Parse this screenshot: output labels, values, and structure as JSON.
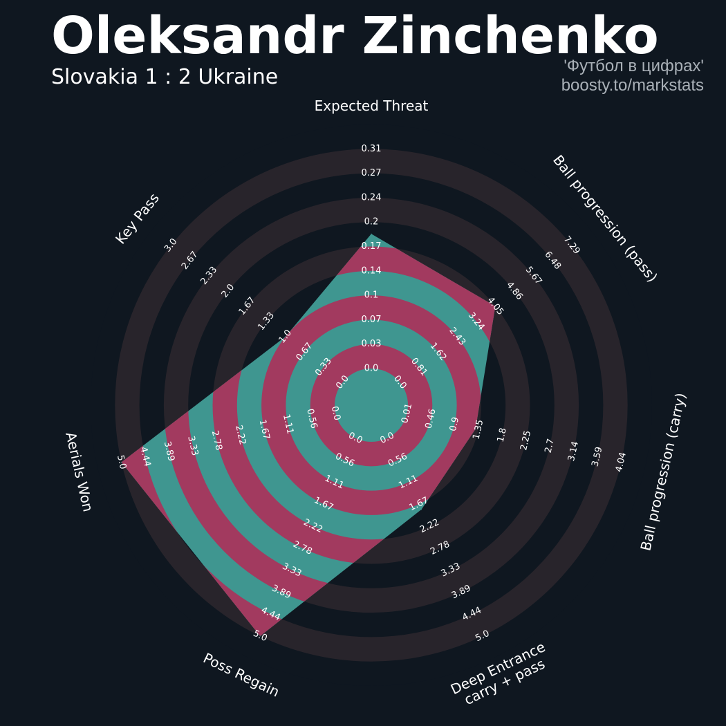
{
  "header": {
    "title": "Oleksandr Zinchenko",
    "subtitle": "Slovakia 1 : 2 Ukraine",
    "credit_line1": "'Футбол в цифрах'",
    "credit_line2": "boosty.to/markstats"
  },
  "colors": {
    "background": "#0f1720",
    "ring_band": "#28242b",
    "player_fill": "#3f9690",
    "player_highlight": "#a23a5f",
    "text": "#ffffff",
    "credit": "#a9b0b7"
  },
  "chart_data": {
    "type": "radar",
    "title": "Oleksandr Zinchenko",
    "subtitle": "Slovakia 1 : 2 Ukraine",
    "grid": true,
    "parameters": [
      {
        "label": "Expected Threat",
        "min": 0.0,
        "max": 0.31,
        "value": 0.19,
        "ticks": [
          "0.0",
          "0.03",
          "0.07",
          "0.1",
          "0.14",
          "0.17",
          "0.2",
          "0.24",
          "0.27",
          "0.31"
        ]
      },
      {
        "label": "Ball progression (pass)",
        "min": 0.0,
        "max": 7.29,
        "value": 4.05,
        "ticks": [
          "0.0",
          "0.81",
          "1.62",
          "2.43",
          "3.24",
          "4.05",
          "4.86",
          "5.67",
          "6.48",
          "7.29"
        ]
      },
      {
        "label": "Ball progression (carry)",
        "min": 0.01,
        "max": 4.04,
        "value": 1.3,
        "ticks": [
          "0.01",
          "0.46",
          "0.9",
          "1.35",
          "1.8",
          "2.25",
          "2.7",
          "3.14",
          "3.59",
          "4.04"
        ]
      },
      {
        "label": "Deep Entrance\ncarry + pass",
        "min": 0.0,
        "max": 5.0,
        "value": 1.8,
        "ticks": [
          "0.0",
          "0.56",
          "1.11",
          "1.67",
          "2.22",
          "2.78",
          "3.33",
          "3.89",
          "4.44",
          "5.0"
        ]
      },
      {
        "label": "Poss Regain",
        "min": 0.0,
        "max": 5.0,
        "value": 5.0,
        "ticks": [
          "0.0",
          "0.56",
          "1.11",
          "1.67",
          "2.22",
          "2.78",
          "3.33",
          "3.89",
          "4.44",
          "5.0"
        ]
      },
      {
        "label": "Aerials Won",
        "min": 0.0,
        "max": 5.0,
        "value": 5.0,
        "ticks": [
          "0.0",
          "0.56",
          "1.11",
          "1.67",
          "2.22",
          "2.78",
          "3.33",
          "3.89",
          "4.44",
          "5.0"
        ]
      },
      {
        "label": "Key Pass",
        "min": 0.0,
        "max": 3.0,
        "value": 1.0,
        "ticks": [
          "0.0",
          "0.33",
          "0.67",
          "1.0",
          "1.33",
          "1.67",
          "2.0",
          "2.33",
          "2.67",
          "3.0"
        ]
      }
    ]
  }
}
